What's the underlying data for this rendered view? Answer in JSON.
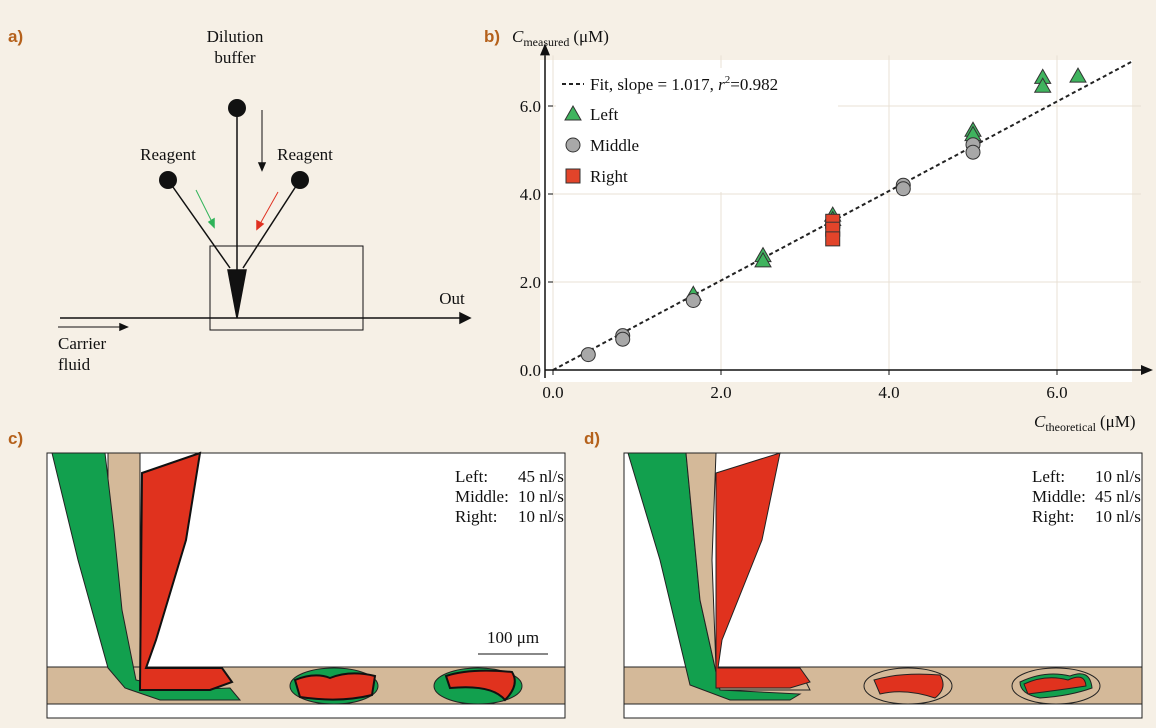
{
  "panels": {
    "a": "a)",
    "b": "b)",
    "c": "c)",
    "d": "d)"
  },
  "diagram": {
    "buffer": [
      "Dilution",
      "buffer"
    ],
    "reagent_left": "Reagent",
    "reagent_right": "Reagent",
    "out": "Out",
    "carrier": [
      "Carrier",
      "fluid"
    ]
  },
  "chart_data": {
    "type": "scatter",
    "xlabel": {
      "symbol": "C",
      "subscript": "theoretical",
      "unit": "(μM)"
    },
    "ylabel": {
      "symbol": "C",
      "subscript": "measured",
      "unit": "(μM)"
    },
    "xlim": [
      0,
      7
    ],
    "ylim": [
      0,
      7.15
    ],
    "xticks": [
      {
        "value": 0,
        "label": "0.0"
      },
      {
        "value": 2,
        "label": "2.0"
      },
      {
        "value": 4,
        "label": "4.0"
      },
      {
        "value": 6,
        "label": "6.0"
      }
    ],
    "yticks": [
      {
        "value": 0,
        "label": "0.0"
      },
      {
        "value": 2,
        "label": "2.0"
      },
      {
        "value": 4,
        "label": "4.0"
      },
      {
        "value": 6,
        "label": "6.0"
      }
    ],
    "grid": true,
    "legend": "upper left",
    "fit": {
      "slope": 1.017,
      "r2": 0.982,
      "label": [
        "Fit, slope = 1.017, ",
        "r",
        "2",
        "=0.982"
      ],
      "color": "#222222"
    },
    "series": [
      {
        "name": "Left",
        "marker": "triangle",
        "color": "#3fb45e",
        "x": [
          1.67,
          2.5,
          2.5,
          3.33,
          3.33,
          5.0,
          5.0,
          5.83,
          5.83,
          6.25
        ],
        "values": [
          1.72,
          2.6,
          2.48,
          3.52,
          3.42,
          5.45,
          5.35,
          6.65,
          6.45,
          6.68
        ]
      },
      {
        "name": "Middle",
        "marker": "circle",
        "color": "#a8a8a8",
        "x": [
          0.42,
          0.83,
          0.83,
          1.67,
          3.33,
          4.17,
          4.17,
          5.0,
          5.0
        ],
        "values": [
          0.35,
          0.78,
          0.7,
          1.58,
          3.25,
          4.2,
          4.12,
          5.12,
          4.95
        ]
      },
      {
        "name": "Right",
        "marker": "square",
        "color": "#e2442a",
        "x": [
          3.33,
          3.33,
          3.33
        ],
        "values": [
          3.38,
          3.2,
          2.98
        ]
      }
    ]
  },
  "simulations": [
    {
      "flows": [
        {
          "name": "Left:",
          "rate": "45 nl/s"
        },
        {
          "name": "Middle:",
          "rate": "10 nl/s"
        },
        {
          "name": "Right:",
          "rate": "10 nl/s"
        }
      ],
      "scale": "100 μm"
    },
    {
      "flows": [
        {
          "name": "Left:",
          "rate": "10 nl/s"
        },
        {
          "name": "Middle:",
          "rate": "45 nl/s"
        },
        {
          "name": "Right:",
          "rate": "10 nl/s"
        }
      ]
    }
  ]
}
